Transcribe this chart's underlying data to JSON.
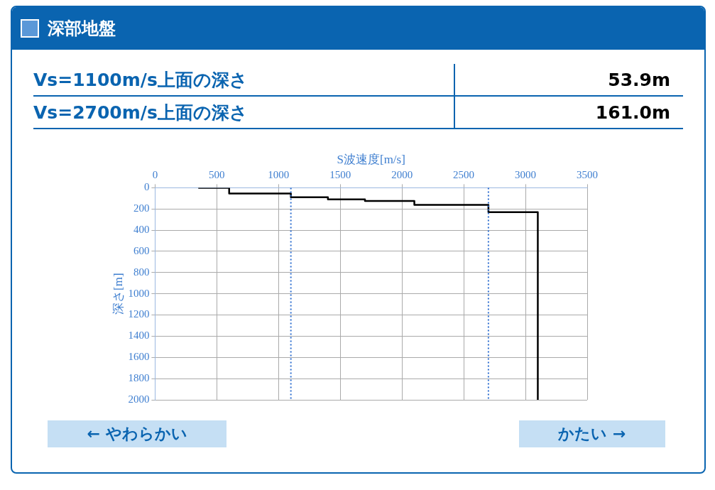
{
  "chart_data": {
    "type": "line",
    "title": "深部地盤",
    "xlabel": "S波速度[m/s]",
    "ylabel": "深さ[m]",
    "annotations": [
      "Vs=1100m/s上面の深さ",
      "53.9m",
      "Vs=2700m/s上面の深さ",
      "161.0m",
      "← やわらかい",
      "かたい →"
    ],
    "series": [
      {
        "color": "#000000",
        "x": [
          350,
          600,
          600,
          1100,
          1100,
          1400,
          1400,
          1700,
          1700,
          2100,
          2100,
          2700,
          2700,
          3100,
          3100
        ],
        "values": [
          0,
          0,
          54,
          54,
          90,
          90,
          110,
          110,
          125,
          125,
          161,
          161,
          230,
          230,
          2000
        ]
      }
    ],
    "xlim": [
      0,
      3500
    ],
    "xticks": [
      0,
      500,
      1000,
      1500,
      2000,
      2500,
      3000,
      3500
    ],
    "ylim": [
      2000,
      0
    ],
    "yticks": [
      0,
      200,
      400,
      600,
      800,
      1000,
      1200,
      1400,
      1600,
      1800,
      2000
    ],
    "ref_lines": [
      {
        "axis": "x",
        "value": 1100,
        "color": "#2f6fd0",
        "line_style": "dotted"
      },
      {
        "axis": "x",
        "value": 2700,
        "color": "#2f6fd0",
        "line_style": "dotted"
      }
    ],
    "grid": true,
    "legend": false,
    "marker": "none",
    "line_style": "solid"
  }
}
